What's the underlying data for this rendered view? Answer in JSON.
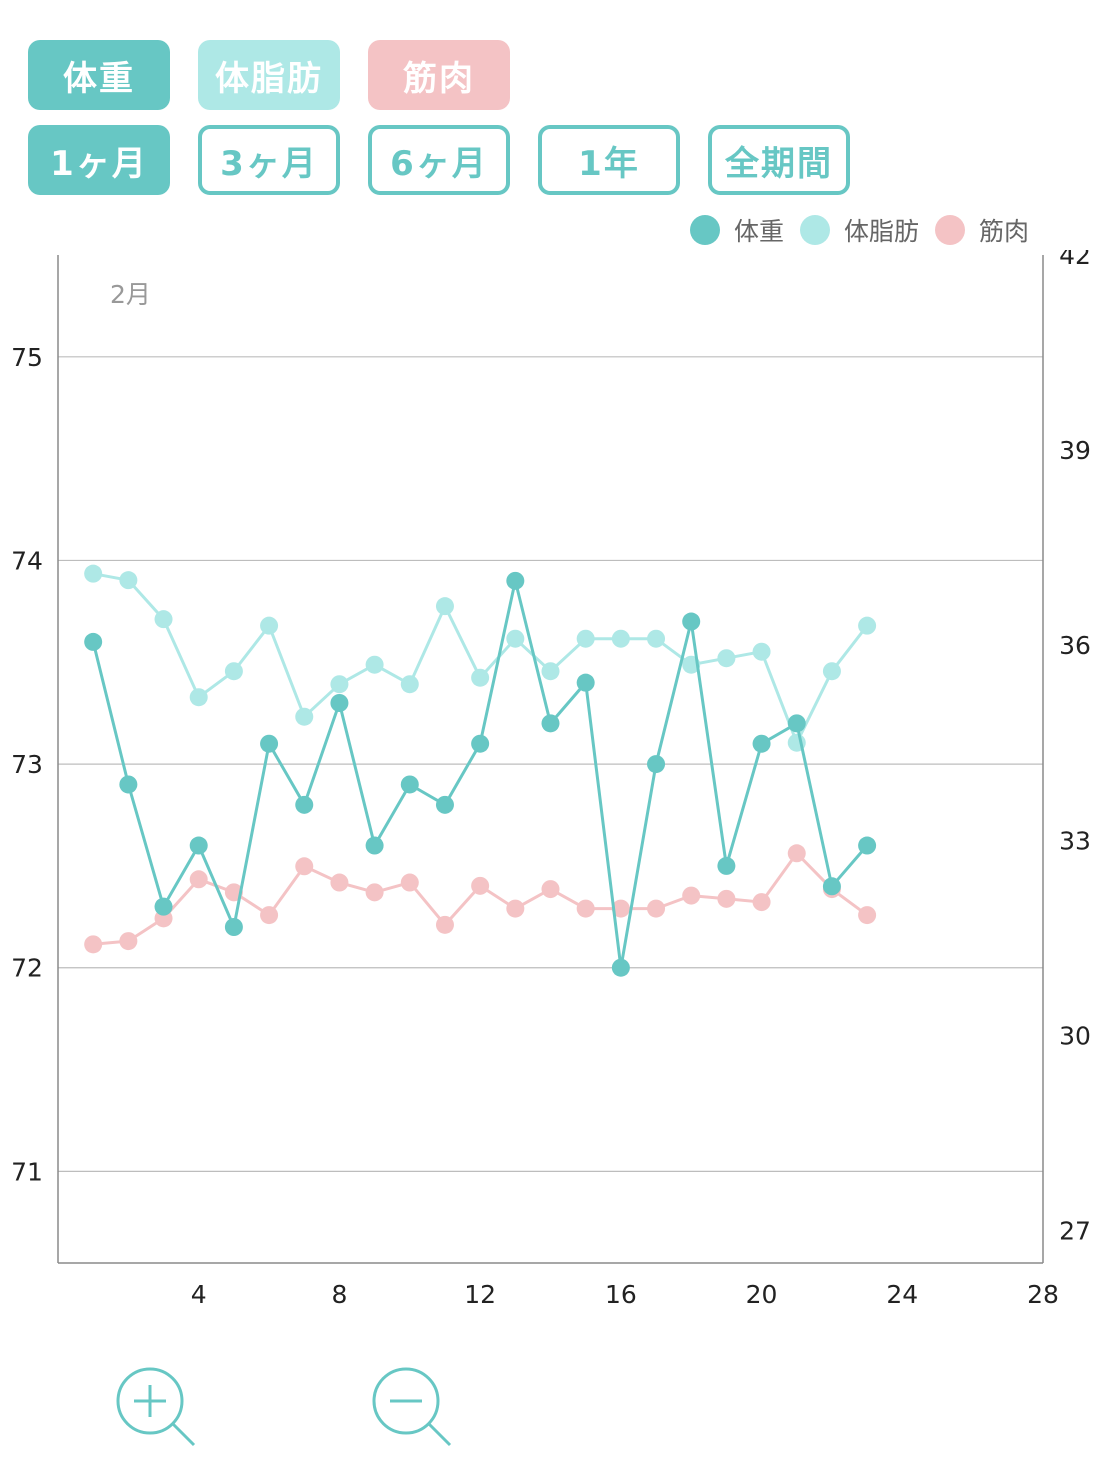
{
  "metric_buttons": [
    {
      "label": "体重",
      "color": "#67c7c4"
    },
    {
      "label": "体脂肪",
      "color": "#aee8e6"
    },
    {
      "label": "筋肉",
      "color": "#f4c3c5"
    }
  ],
  "period_buttons": [
    "1ヶ月",
    "3ヶ月",
    "6ヶ月",
    "1年",
    "全期間"
  ],
  "active_period": "1ヶ月",
  "legend": [
    {
      "label": "体重",
      "color": "#67c7c4"
    },
    {
      "label": "体脂肪",
      "color": "#aee8e6"
    },
    {
      "label": "筋肉",
      "color": "#f4c3c5"
    }
  ],
  "zoom_controls": {
    "zoom_in": "zoom-in-icon",
    "zoom_out": "zoom-out-icon"
  },
  "chart_data": {
    "type": "line",
    "annotation": "2月",
    "xlim": [
      0,
      28
    ],
    "x_ticks": [
      4,
      8,
      12,
      16,
      20,
      24,
      28
    ],
    "ylim_left": [
      70.55,
      75.5
    ],
    "y_ticks_left": [
      71,
      72,
      73,
      74,
      75
    ],
    "ylim_right": [
      26.5,
      42.0
    ],
    "y_ticks_right": [
      27,
      30,
      33,
      36,
      39,
      42
    ],
    "grid": "horizontal",
    "legend_position": "top-right",
    "x": [
      1,
      2,
      3,
      4,
      5,
      6,
      7,
      8,
      9,
      10,
      11,
      12,
      13,
      14,
      15,
      16,
      17,
      18,
      19,
      20,
      21,
      22,
      23
    ],
    "series": [
      {
        "name": "体重",
        "axis": "left",
        "color": "#67c7c4",
        "values": [
          73.6,
          72.9,
          72.3,
          72.6,
          72.2,
          73.1,
          72.8,
          73.3,
          72.6,
          72.9,
          72.8,
          73.1,
          73.9,
          73.2,
          73.4,
          72.0,
          73.0,
          73.7,
          72.5,
          73.1,
          73.2,
          72.4,
          72.6
        ]
      },
      {
        "name": "体脂肪",
        "axis": "right",
        "color": "#aee8e6",
        "values": [
          37.1,
          37.0,
          36.4,
          35.2,
          35.6,
          36.3,
          34.9,
          35.4,
          35.7,
          35.4,
          36.6,
          35.5,
          36.1,
          35.6,
          36.1,
          36.1,
          36.1,
          35.7,
          35.8,
          35.9,
          34.5,
          35.6,
          36.3
        ]
      },
      {
        "name": "筋肉",
        "axis": "right",
        "color": "#f4c3c5",
        "values": [
          31.4,
          31.45,
          31.8,
          32.4,
          32.2,
          31.85,
          32.6,
          32.35,
          32.2,
          32.35,
          31.7,
          32.3,
          31.95,
          32.25,
          31.95,
          31.95,
          31.95,
          32.15,
          32.1,
          32.05,
          32.8,
          32.25,
          31.85
        ]
      }
    ]
  }
}
